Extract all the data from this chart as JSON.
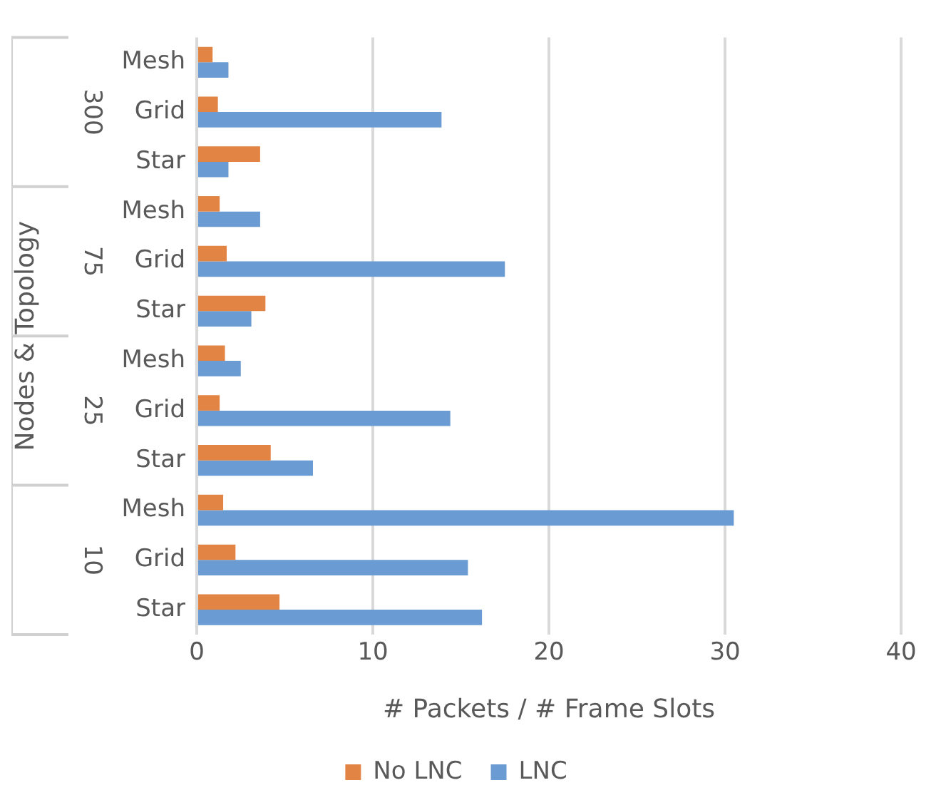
{
  "chart_data": {
    "type": "bar",
    "orientation": "horizontal",
    "xlabel": "# Packets / # Frame Slots",
    "ylabel": "Nodes & Topology",
    "categories": [
      "Mesh",
      "Grid",
      "Star",
      "Mesh",
      "Grid",
      "Star",
      "Mesh",
      "Grid",
      "Star",
      "Mesh",
      "Grid",
      "Star"
    ],
    "annotations": [
      "300",
      "75",
      "25",
      "10"
    ],
    "series": [
      {
        "name": "No LNC",
        "color": "#e28444",
        "values": [
          0.9,
          1.2,
          3.6,
          1.3,
          1.7,
          3.9,
          1.6,
          1.3,
          4.2,
          1.5,
          2.2,
          4.7
        ]
      },
      {
        "name": "LNC",
        "color": "#6a9bd2",
        "values": [
          1.8,
          13.9,
          1.8,
          3.6,
          17.5,
          3.1,
          2.5,
          14.4,
          6.6,
          30.5,
          15.4,
          16.2
        ]
      }
    ],
    "xlim": [
      0,
      40
    ],
    "xticks": [
      0,
      10,
      20,
      30,
      40
    ],
    "grid": "x",
    "legend": "bottom"
  }
}
